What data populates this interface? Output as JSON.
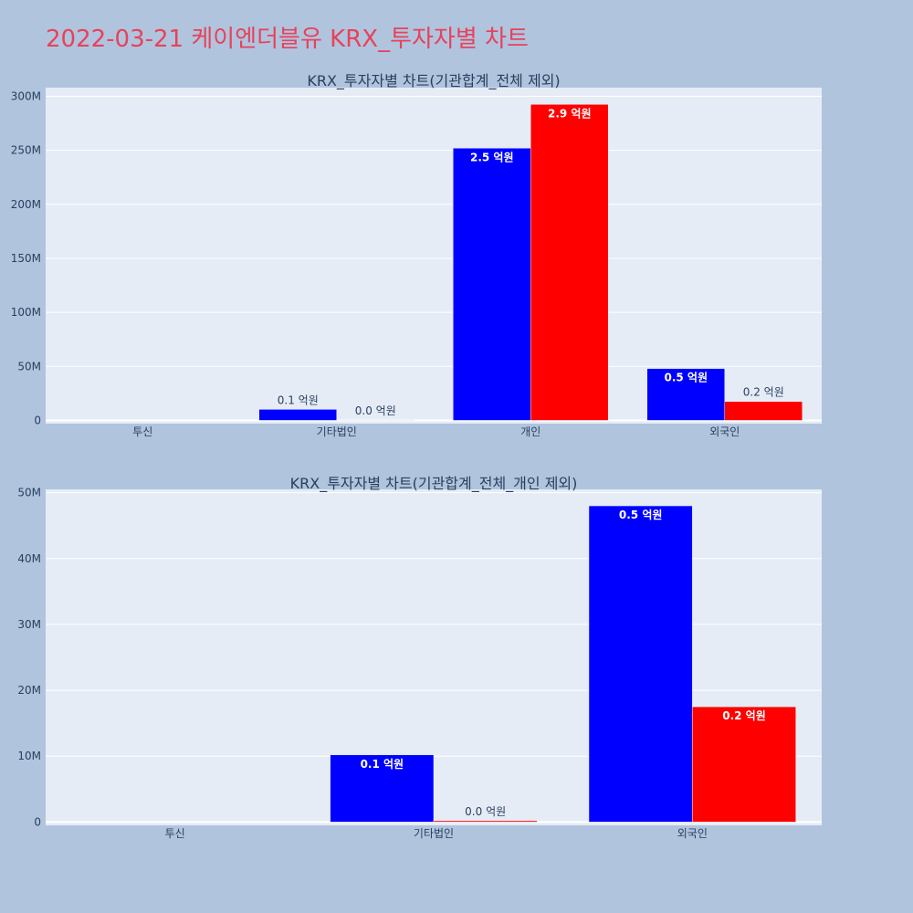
{
  "page_title": "2022-03-21 케이엔더블유 KRX_투자자별 차트",
  "colors": {
    "background": "#b0c4de",
    "plot_background": "#e5ecf6",
    "title": "#e8425b",
    "series_a": "#0000ff",
    "series_b": "#ff0000",
    "text": "#2a3f5f"
  },
  "chart_data": [
    {
      "type": "bar",
      "title": "KRX_투자자별 차트(기관합계_전체 제외)",
      "categories": [
        "투신",
        "기타법인",
        "개인",
        "외국인"
      ],
      "series": [
        {
          "color": "#0000ff",
          "values": [
            0,
            10200000,
            252000000,
            48000000
          ],
          "labels": [
            "",
            "0.1 억원",
            "2.5 억원",
            "0.5 억원"
          ]
        },
        {
          "color": "#ff0000",
          "values": [
            0,
            200000,
            292500000,
            17500000
          ],
          "labels": [
            "",
            "0.0 억원",
            "2.9 억원",
            "0.2 억원"
          ]
        }
      ],
      "ylim": [
        -3000000,
        308000000
      ],
      "yticks": [
        0,
        50000000,
        100000000,
        150000000,
        200000000,
        250000000,
        300000000
      ],
      "ytick_labels": [
        "0",
        "50M",
        "100M",
        "150M",
        "200M",
        "250M",
        "300M"
      ],
      "grid": true
    },
    {
      "type": "bar",
      "title": "KRX_투자자별 차트(기관합계_전체_개인 제외)",
      "categories": [
        "투신",
        "기타법인",
        "외국인"
      ],
      "series": [
        {
          "color": "#0000ff",
          "values": [
            0,
            10200000,
            48000000
          ],
          "labels": [
            "",
            "0.1 억원",
            "0.5 억원"
          ]
        },
        {
          "color": "#ff0000",
          "values": [
            0,
            200000,
            17500000
          ],
          "labels": [
            "",
            "0.0 억원",
            "0.2 억원"
          ]
        }
      ],
      "ylim": [
        -500000,
        50500000
      ],
      "yticks": [
        0,
        10000000,
        20000000,
        30000000,
        40000000,
        50000000
      ],
      "ytick_labels": [
        "0",
        "10M",
        "20M",
        "30M",
        "40M",
        "50M"
      ],
      "grid": true
    }
  ]
}
